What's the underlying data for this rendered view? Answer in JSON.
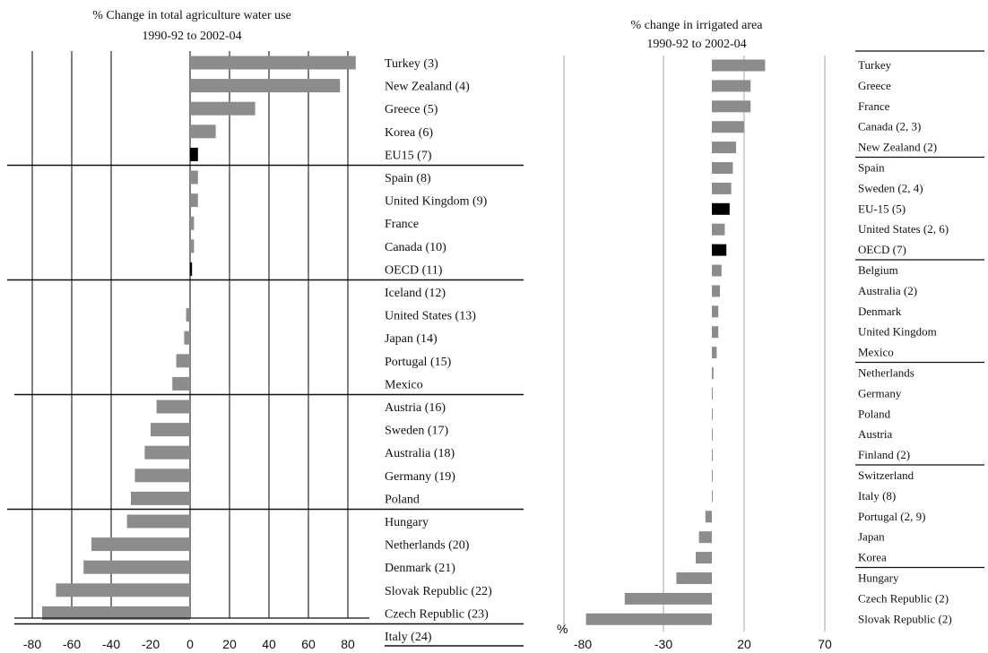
{
  "chart_data": [
    {
      "type": "bar",
      "orientation": "horizontal",
      "title_line1": "% Change in total agriculture water use",
      "title_line2": "1990-92 to 2002-04",
      "xlim": [
        -80,
        90
      ],
      "xticks": [
        "-80",
        "-60",
        "-40",
        "-20",
        "0",
        "20",
        "40",
        "60",
        "80"
      ],
      "gridlines_at": [
        -80,
        -60,
        -40,
        0,
        20,
        40,
        60,
        80
      ],
      "group_separators_after": [
        4,
        9,
        14,
        19,
        24
      ],
      "highlight_color": "#000000",
      "bar_color": "#8c8c8c",
      "categories": [
        "Turkey (3)",
        "New Zealand (4)",
        "Greece (5)",
        "Korea (6)",
        "EU15 (7)",
        "Spain (8)",
        "United Kingdom (9)",
        "France",
        "Canada (10)",
        "OECD (11)",
        "Iceland (12)",
        "United States (13)",
        "Japan (14)",
        "Portugal (15)",
        "Mexico",
        "Austria (16)",
        "Sweden (17)",
        "Australia (18)",
        "Germany (19)",
        "Poland",
        "Hungary",
        "Netherlands (20)",
        "Denmark (21)",
        "Slovak Republic (22)",
        "Czech Republic (23)",
        "Italy (24)"
      ],
      "values": [
        84,
        76,
        33,
        13,
        4,
        4,
        4,
        2,
        2,
        1,
        0,
        -2,
        -3,
        -7,
        -9,
        -17,
        -20,
        -23,
        -28,
        -30,
        -32,
        -50,
        -54,
        -68,
        -75,
        0
      ],
      "highlighted": [
        "EU15 (7)",
        "OECD (11)"
      ]
    },
    {
      "type": "bar",
      "orientation": "horizontal",
      "title_line1": "% change in irrigated area",
      "title_line2": "1990-92 to 2002-04",
      "unit_label": "%",
      "xlim": [
        -80,
        80
      ],
      "xticks": [
        "-80",
        "-30",
        "20",
        "70"
      ],
      "gridlines_at": [
        -30,
        20,
        70
      ],
      "group_separators_after": [
        4,
        9,
        14,
        19,
        24
      ],
      "highlight_color": "#000000",
      "bar_color": "#8c8c8c",
      "categories": [
        "Turkey",
        "Greece",
        "France",
        "Canada (2, 3)",
        "New Zealand (2)",
        "Spain",
        "Sweden (2, 4)",
        "EU-15 (5)",
        "United States (2, 6)",
        "OECD (7)",
        "Belgium",
        "Australia (2)",
        "Denmark",
        "United Kingdom",
        "Mexico",
        "Netherlands",
        "Germany",
        "Poland",
        "Austria",
        "Finland (2)",
        "Switzerland",
        "Italy (8)",
        "Portugal (2, 9)",
        "Japan",
        "Korea",
        "Hungary",
        "Czech Republic (2)",
        "Slovak Republic (2)"
      ],
      "values": [
        33,
        24,
        24,
        20,
        15,
        13,
        12,
        11,
        8,
        9,
        6,
        5,
        4,
        4,
        3,
        1,
        0.5,
        0.5,
        0,
        0,
        0,
        0,
        -4,
        -8,
        -10,
        -22,
        -54,
        -78
      ],
      "highlighted": [
        "EU-15 (5)",
        "OECD (7)"
      ]
    }
  ]
}
